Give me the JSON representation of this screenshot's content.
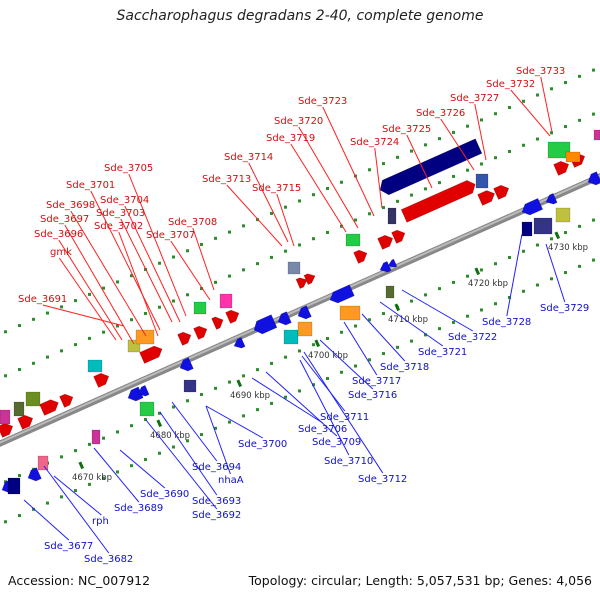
{
  "title": "Saccharophagus degradans 2-40, complete genome",
  "footer": {
    "accession": "Accession: NC_007912",
    "summary": "Topology: circular; Length: 5,057,531 bp; Genes: 4,056"
  },
  "colors": {
    "upper_labels": "#d01010",
    "lower_labels": "#1010d0",
    "backbone": "#808080",
    "tick": "#107010"
  },
  "scale_labels": [
    "4670 kbp",
    "4680 kbp",
    "4690 kbp",
    "4700 kbp",
    "4710 kbp",
    "4720 kbp",
    "4730 kbp"
  ],
  "upper_genes": [
    "Sde_3691",
    "gmk",
    "Sde_3696",
    "Sde_3697",
    "Sde_3698",
    "Sde_3701",
    "Sde_3702",
    "Sde_3703",
    "Sde_3704",
    "Sde_3705",
    "Sde_3707",
    "Sde_3708",
    "Sde_3713",
    "Sde_3714",
    "Sde_3715",
    "Sde_3719",
    "Sde_3720",
    "Sde_3723",
    "Sde_3724",
    "Sde_3725",
    "Sde_3726",
    "Sde_3727",
    "Sde_3732",
    "Sde_3733"
  ],
  "lower_genes": [
    "Sde_3677",
    "Sde_3682",
    "rph",
    "Sde_3689",
    "Sde_3690",
    "Sde_3692",
    "Sde_3693",
    "Sde_3694",
    "nhaA",
    "Sde_3700",
    "Sde_3706",
    "Sde_3709",
    "Sde_3710",
    "Sde_3711",
    "Sde_3712",
    "Sde_3716",
    "Sde_3717",
    "Sde_3718",
    "Sde_3721",
    "Sde_3722",
    "Sde_3728",
    "Sde_3729"
  ]
}
